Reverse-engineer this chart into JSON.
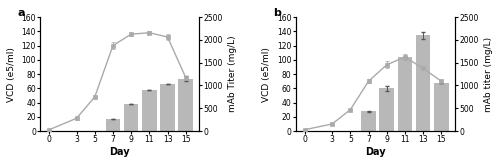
{
  "panel_a": {
    "label": "a",
    "days_vcd": [
      0,
      3,
      5,
      7,
      9,
      11,
      13,
      15
    ],
    "vcd": [
      2,
      18,
      48,
      120,
      136,
      138,
      132,
      75
    ],
    "vcd_err": [
      0,
      2,
      0,
      5,
      2,
      2,
      4,
      0
    ],
    "days_bar": [
      7,
      9,
      11,
      13,
      15
    ],
    "titer": [
      270,
      600,
      900,
      1040,
      1150
    ],
    "titer_err": [
      0,
      0,
      0,
      0,
      50
    ],
    "ylim_vcd": [
      0,
      160
    ],
    "ylim_titer": [
      0,
      2500
    ],
    "yticks_vcd": [
      0,
      20,
      40,
      60,
      80,
      100,
      120,
      140,
      160
    ],
    "yticks_titer": [
      0,
      500,
      1000,
      1500,
      2000,
      2500
    ],
    "ylabel_left": "VCD (e5/ml)",
    "ylabel_right": "mAb Titer (mg/L)",
    "xlabel": "Day",
    "xticks": [
      0,
      3,
      5,
      7,
      9,
      11,
      13,
      15
    ]
  },
  "panel_b": {
    "label": "b",
    "days_vcd": [
      0,
      3,
      5,
      7,
      9,
      11,
      13,
      15
    ],
    "vcd": [
      2,
      10,
      30,
      70,
      93,
      104,
      88,
      70
    ],
    "vcd_err": [
      0,
      0,
      0,
      3,
      5,
      4,
      0,
      0
    ],
    "days_bar": [
      7,
      9,
      11,
      13,
      15
    ],
    "titer": [
      430,
      940,
      1630,
      2100,
      1050
    ],
    "titer_err": [
      20,
      50,
      0,
      80,
      0
    ],
    "ylim_vcd": [
      0,
      160
    ],
    "ylim_titer": [
      0,
      2500
    ],
    "yticks_vcd": [
      0,
      20,
      40,
      60,
      80,
      100,
      120,
      140,
      160
    ],
    "yticks_titer": [
      0,
      500,
      1000,
      1500,
      2000,
      2500
    ],
    "ylabel_left": "VCD (e5/ml)",
    "ylabel_right": "mAb titer (mg/L)",
    "xlabel": "Day",
    "xticks": [
      0,
      3,
      5,
      7,
      9,
      11,
      13,
      15
    ]
  },
  "bar_color": "#b8b8b8",
  "line_color": "#aaaaaa",
  "marker": "s",
  "marker_size": 3.0,
  "line_width": 1.0,
  "bar_width": 1.6,
  "background_color": "#ffffff",
  "label_fontsize": 6.5,
  "tick_fontsize": 5.5,
  "panel_label_fontsize": 8,
  "xlabel_fontsize": 7
}
